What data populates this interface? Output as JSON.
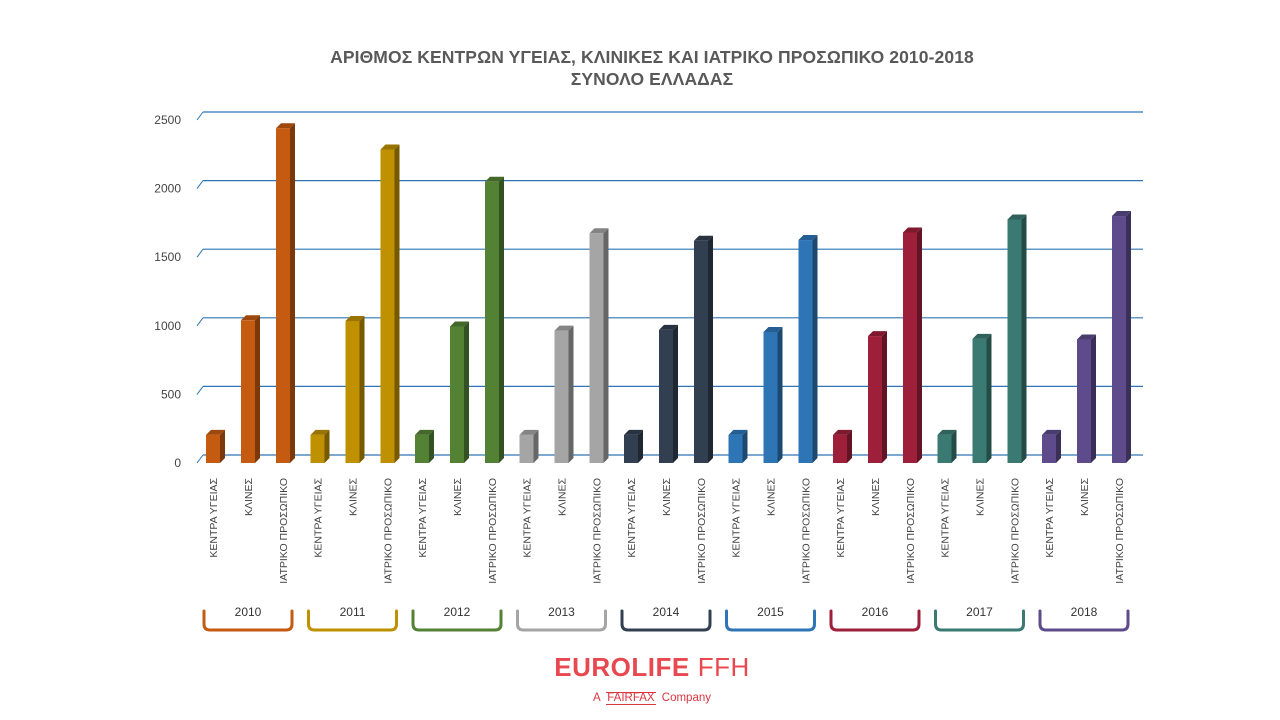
{
  "chart_data": {
    "type": "bar",
    "title": [
      "ΑΡΙΘΜΟΣ ΚΕΝΤΡΩΝ ΥΓΕΙΑΣ, ΚΛΙΝΙΚΕΣ ΚΑΙ ΙΑΤΡΙΚΟ ΠΡΟΣΩΠΙΚΟ 2010-2018",
      "ΣΥΝΟΛΟ ΕΛΛΑΔΑΣ"
    ],
    "categories": [
      "ΚΕΝΤΡΑ ΥΓΕΙΑΣ",
      "ΚΛΙΝΕΣ",
      "ΙΑΤΡΙΚΟ ΠΡΟΣΩΠΙΚΟ"
    ],
    "groups": [
      {
        "name": "2010",
        "color": "#c55a11",
        "values": [
          205,
          1040,
          2440
        ]
      },
      {
        "name": "2011",
        "color": "#bf9000",
        "values": [
          205,
          1035,
          2285
        ]
      },
      {
        "name": "2012",
        "color": "#548235",
        "values": [
          205,
          995,
          2050
        ]
      },
      {
        "name": "2013",
        "color": "#a5a5a5",
        "values": [
          205,
          965,
          1675
        ]
      },
      {
        "name": "2014",
        "color": "#323f50",
        "values": [
          205,
          970,
          1620
        ]
      },
      {
        "name": "2015",
        "color": "#2e75b6",
        "values": [
          205,
          955,
          1625
        ]
      },
      {
        "name": "2016",
        "color": "#9e1f3a",
        "values": [
          205,
          925,
          1680
        ]
      },
      {
        "name": "2017",
        "color": "#3a7a72",
        "values": [
          205,
          905,
          1775
        ]
      },
      {
        "name": "2018",
        "color": "#5e4b8b",
        "values": [
          205,
          900,
          1800
        ]
      }
    ],
    "ylim": [
      0,
      2500
    ],
    "yticks": [
      "0",
      "500",
      "1000",
      "1500",
      "2000",
      "2500"
    ],
    "grid": true,
    "legend": "none"
  },
  "logo": {
    "brand": "EUROLIFE",
    "suffix": "FFH",
    "tagline_prefix": "A",
    "tagline_brand": "FAIRFAX",
    "tagline_suffix": "Company"
  }
}
